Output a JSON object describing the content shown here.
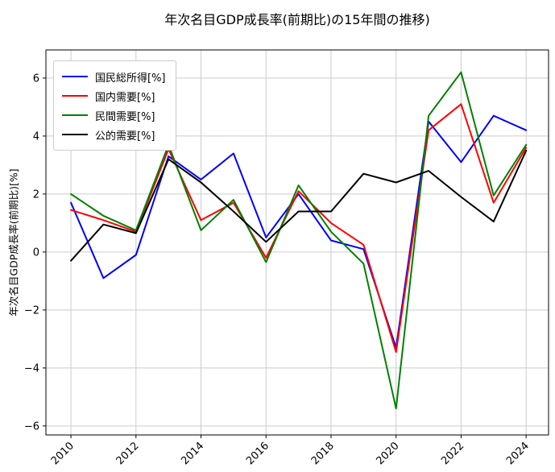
{
  "title": "年次名目GDP成長率(前期比)の15年間の推移)",
  "chart_data": {
    "type": "line",
    "title": "年次名目GDP成長率(前期比)の15年間の推移)",
    "xlabel": "",
    "ylabel": "年次名目GDP成長率(前期比)[%]",
    "x": [
      2010,
      2011,
      2012,
      2013,
      2014,
      2015,
      2016,
      2017,
      2018,
      2019,
      2020,
      2021,
      2022,
      2023,
      2024
    ],
    "series": [
      {
        "name": "国民総所得[%]",
        "color": "#0000ff",
        "values": [
          1.7,
          -0.9,
          -0.1,
          3.3,
          2.5,
          3.4,
          0.5,
          2.0,
          0.4,
          0.1,
          -3.3,
          4.5,
          3.1,
          4.7,
          4.2
        ]
      },
      {
        "name": "国内需要[%]",
        "color": "#ff0000",
        "values": [
          1.45,
          1.1,
          0.7,
          3.55,
          1.1,
          1.7,
          -0.2,
          2.1,
          1.0,
          0.25,
          -3.45,
          4.2,
          5.1,
          1.7,
          3.6
        ]
      },
      {
        "name": "民間需要[%]",
        "color": "#008000",
        "values": [
          2.0,
          1.25,
          0.75,
          3.7,
          0.75,
          1.8,
          -0.35,
          2.3,
          0.7,
          -0.4,
          -5.4,
          4.7,
          6.2,
          1.95,
          3.7
        ]
      },
      {
        "name": "公的需要[%]",
        "color": "#000000",
        "values": [
          -0.3,
          0.95,
          0.65,
          3.2,
          2.4,
          1.4,
          0.35,
          1.4,
          1.4,
          2.7,
          2.4,
          2.8,
          1.9,
          1.05,
          3.5
        ]
      }
    ],
    "x_ticks": [
      2010,
      2012,
      2014,
      2016,
      2018,
      2020,
      2022,
      2024
    ],
    "y_ticks": [
      -6,
      -4,
      -2,
      0,
      2,
      4,
      6
    ],
    "xlim": [
      2009.23,
      2024.69
    ],
    "ylim": [
      -6.31,
      6.97
    ],
    "x_tick_rotation": 45,
    "grid": true,
    "grid_color": "#cccccc",
    "legend_position": "upper left",
    "background": "#ffffff"
  }
}
